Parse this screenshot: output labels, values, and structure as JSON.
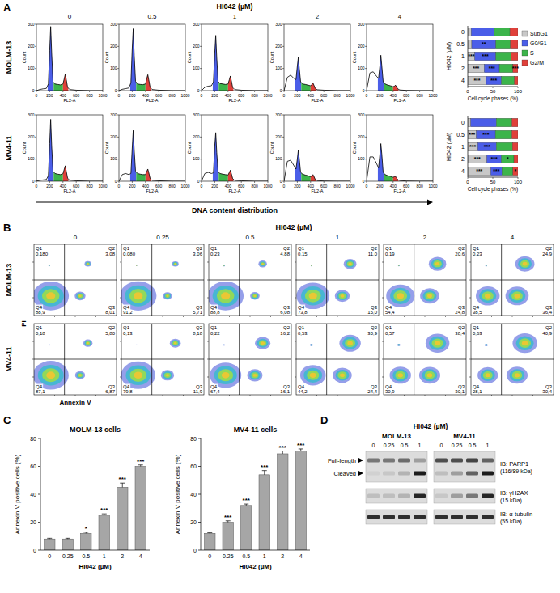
{
  "figure": {
    "panel_a": {
      "label": "A",
      "title": "HI042 (µM)",
      "footer": "DNA content distribution"
    },
    "panel_b": {
      "label": "B",
      "title": "HI042 (µM)",
      "doses": [
        "0",
        "0.25",
        "0.5",
        "1",
        "2",
        "4"
      ],
      "xlabel": "Annexin V",
      "ylabel": "PI",
      "quadrant_names": [
        "Q1",
        "Q2",
        "Q3",
        "Q4"
      ]
    },
    "panel_c": {
      "label": "C"
    },
    "panel_d": {
      "label": "D",
      "title": "HI042 (µM)",
      "cell_lines": [
        "MOLM-13",
        "MV4-11"
      ],
      "lanes": [
        "0",
        "0.25",
        "0.5",
        "1"
      ],
      "band_labels": [
        "Full-length",
        "Cleaved"
      ],
      "rows": [
        {
          "label": "IB: PARP1",
          "size": "(116/89 kDa)",
          "bands": [
            {
              "intensity": [
                [
                  0.5,
                  0.5,
                  0.55,
                  0.3
                ],
                [
                  0.7,
                  0.7,
                  0.75,
                  0.6
                ]
              ]
            },
            {
              "intensity": [
                [
                  0.05,
                  0.1,
                  0.2,
                  0.95
                ],
                [
                  0.15,
                  0.3,
                  0.6,
                  0.95
                ]
              ]
            }
          ]
        },
        {
          "label": "IB: γH2AX",
          "size": "(15 kDa)",
          "bands": [
            {
              "intensity": [
                [
                  0.15,
                  0.15,
                  0.2,
                  0.9
                ],
                [
                  0.1,
                  0.3,
                  0.5,
                  0.9
                ]
              ]
            }
          ]
        },
        {
          "label": "IB: α-tubulin",
          "size": "(55 kDa)",
          "bands": [
            {
              "intensity": [
                [
                  0.85,
                  0.85,
                  0.85,
                  0.85
                ],
                [
                  0.85,
                  0.85,
                  0.85,
                  0.85
                ]
              ]
            }
          ]
        }
      ]
    }
  },
  "chart_data": [
    {
      "type": "area",
      "title": "MOLM-13",
      "xlabel": "FL2-A",
      "ylabel": "Count",
      "x": [
        0,
        50,
        100,
        150,
        180,
        200,
        215,
        230,
        250,
        280,
        320,
        360,
        400,
        420,
        435,
        450,
        470,
        500,
        600,
        800,
        1000
      ],
      "xlim": [
        0,
        1000
      ],
      "xticks": [
        0,
        200,
        400,
        600,
        800,
        1000
      ],
      "ylim": [
        0,
        300
      ],
      "yticks": [
        0,
        100,
        200,
        300
      ],
      "regions": [
        {
          "color": "#4b5ee8",
          "x": [
            170,
            260
          ]
        },
        {
          "color": "#3cb44b",
          "x": [
            260,
            400
          ]
        },
        {
          "color": "#e0403a",
          "x": [
            400,
            480
          ]
        }
      ],
      "series": [
        {
          "name": "0",
          "values": [
            0,
            5,
            8,
            10,
            30,
            180,
            290,
            170,
            40,
            30,
            28,
            26,
            30,
            55,
            75,
            50,
            15,
            5,
            2,
            0,
            0
          ]
        },
        {
          "name": "0.5",
          "values": [
            0,
            6,
            9,
            12,
            35,
            190,
            280,
            160,
            42,
            30,
            28,
            27,
            30,
            55,
            72,
            48,
            15,
            5,
            2,
            0,
            0
          ]
        },
        {
          "name": "1",
          "values": [
            0,
            15,
            20,
            22,
            40,
            170,
            250,
            150,
            42,
            32,
            30,
            28,
            30,
            50,
            66,
            45,
            14,
            5,
            2,
            0,
            0
          ]
        },
        {
          "name": "2",
          "values": [
            0,
            60,
            70,
            55,
            50,
            110,
            150,
            100,
            40,
            30,
            28,
            25,
            22,
            28,
            35,
            25,
            10,
            4,
            2,
            0,
            0
          ]
        },
        {
          "name": "4",
          "values": [
            0,
            80,
            85,
            65,
            55,
            110,
            160,
            110,
            40,
            30,
            25,
            22,
            18,
            20,
            25,
            18,
            8,
            3,
            1,
            0,
            0
          ]
        }
      ]
    },
    {
      "type": "area",
      "title": "MV4-11",
      "xlabel": "FL2-A",
      "ylabel": "Count",
      "x": [
        0,
        50,
        100,
        150,
        180,
        200,
        215,
        230,
        250,
        280,
        320,
        360,
        400,
        420,
        435,
        450,
        470,
        500,
        600,
        800,
        1000
      ],
      "xlim": [
        0,
        1000
      ],
      "xticks": [
        0,
        200,
        400,
        600,
        800,
        1000
      ],
      "ylim": [
        0,
        300
      ],
      "yticks": [
        0,
        100,
        200,
        300
      ],
      "regions": [
        {
          "color": "#4b5ee8",
          "x": [
            170,
            260
          ]
        },
        {
          "color": "#3cb44b",
          "x": [
            260,
            400
          ]
        },
        {
          "color": "#e0403a",
          "x": [
            400,
            480
          ]
        }
      ],
      "series": [
        {
          "values": [
            0,
            4,
            6,
            8,
            25,
            170,
            280,
            160,
            45,
            35,
            32,
            30,
            34,
            55,
            70,
            45,
            14,
            5,
            2,
            0,
            0
          ]
        },
        {
          "values": [
            0,
            30,
            35,
            30,
            35,
            150,
            230,
            140,
            45,
            35,
            32,
            30,
            30,
            45,
            55,
            38,
            12,
            4,
            2,
            0,
            0
          ]
        },
        {
          "values": [
            0,
            35,
            40,
            35,
            38,
            160,
            220,
            130,
            42,
            35,
            32,
            30,
            28,
            40,
            50,
            35,
            12,
            4,
            2,
            0,
            0
          ]
        },
        {
          "values": [
            0,
            90,
            95,
            70,
            55,
            100,
            140,
            100,
            40,
            32,
            28,
            25,
            20,
            25,
            30,
            22,
            8,
            3,
            1,
            0,
            0
          ]
        },
        {
          "values": [
            0,
            110,
            110,
            80,
            60,
            120,
            170,
            120,
            40,
            30,
            25,
            22,
            18,
            20,
            22,
            16,
            7,
            3,
            1,
            0,
            0
          ]
        }
      ]
    },
    {
      "type": "bar",
      "orientation": "horizontal",
      "stacked": true,
      "legend": "right",
      "ylabel": "HI042 (µM)",
      "xlabel": "Cell cycle phases (%)",
      "categories": [
        "0",
        "0.5",
        "1",
        "2",
        "4"
      ],
      "xlim": [
        0,
        100
      ],
      "xticks": [
        0,
        50,
        100
      ],
      "series": [
        {
          "name": "SubG1",
          "color": "#c8c8c8",
          "values": [
            7,
            8,
            14,
            33,
            37
          ],
          "significance": [
            null,
            null,
            "***",
            "***",
            "***"
          ]
        },
        {
          "name": "G0/G1",
          "color": "#4b5ee8",
          "values": [
            46,
            48,
            42,
            30,
            30
          ],
          "significance": [
            null,
            "**",
            "***",
            "***",
            "***"
          ]
        },
        {
          "name": "S",
          "color": "#3cb44b",
          "values": [
            31,
            29,
            30,
            27,
            26
          ],
          "significance": [
            null,
            null,
            null,
            null,
            null
          ]
        },
        {
          "name": "G2/M",
          "color": "#e0403a",
          "values": [
            16,
            15,
            14,
            10,
            7
          ],
          "significance": [
            null,
            null,
            null,
            "***",
            null
          ]
        }
      ]
    },
    {
      "type": "bar",
      "orientation": "horizontal",
      "stacked": true,
      "ylabel": "HI042 (µM)",
      "xlabel": "Cell cycle phases (%)",
      "categories": [
        "0",
        "0.5",
        "1",
        "2",
        "4"
      ],
      "xlim": [
        0,
        100
      ],
      "xticks": [
        0,
        50,
        100
      ],
      "series": [
        {
          "color": "#c8c8c8",
          "values": [
            6,
            17,
            20,
            38,
            46
          ],
          "significance": [
            null,
            "***",
            "***",
            "***",
            "***"
          ]
        },
        {
          "color": "#4b5ee8",
          "values": [
            51,
            38,
            37,
            29,
            22
          ],
          "significance": [
            null,
            "***",
            "***",
            "***",
            "***"
          ]
        },
        {
          "color": "#3cb44b",
          "values": [
            31,
            33,
            32,
            25,
            22
          ],
          "significance": [
            null,
            null,
            null,
            "*",
            null
          ]
        },
        {
          "color": "#e0403a",
          "values": [
            12,
            12,
            11,
            8,
            10
          ],
          "significance": [
            null,
            null,
            null,
            null,
            "*"
          ]
        }
      ]
    },
    {
      "type": "scatter",
      "title": "MOLM-13",
      "log": true,
      "tick_labels": false,
      "xlim": [
        1,
        10000
      ],
      "ylim": [
        1,
        10000
      ],
      "xticks": [
        10,
        100,
        1000
      ],
      "yticks": [
        10,
        100,
        1000
      ],
      "gate": [
        30,
        100
      ],
      "plots": [
        {
          "values": [
            0.18,
            3.08,
            8.01,
            88.9
          ],
          "value_labels": [
            "0,180",
            "3,08",
            "8,01",
            "88,9"
          ]
        },
        {
          "values": [
            0.08,
            3.06,
            5.71,
            91.2
          ],
          "value_labels": [
            "0,080",
            "3,06",
            "5,71",
            "91,2"
          ]
        },
        {
          "values": [
            0.23,
            4.88,
            6.08,
            88.8
          ],
          "value_labels": [
            "0,23",
            "4,88",
            "6,08",
            "88,8"
          ]
        },
        {
          "values": [
            0.15,
            11.0,
            15.0,
            73.8
          ],
          "value_labels": [
            "0,15",
            "11,0",
            "15,0",
            "73,8"
          ]
        },
        {
          "values": [
            0.19,
            20.6,
            24.8,
            54.4
          ],
          "value_labels": [
            "0,19",
            "20,6",
            "24,8",
            "54,4"
          ]
        },
        {
          "values": [
            0.23,
            24.9,
            36.4,
            38.5
          ],
          "value_labels": [
            "0,23",
            "24,9",
            "36,4",
            "38,5"
          ]
        }
      ]
    },
    {
      "type": "scatter",
      "title": "MV4-11",
      "log": true,
      "tick_labels": false,
      "xlim": [
        1,
        10000
      ],
      "ylim": [
        1,
        10000
      ],
      "xticks": [
        10,
        100,
        1000
      ],
      "yticks": [
        10,
        100,
        1000
      ],
      "gate": [
        30,
        100
      ],
      "plots": [
        {
          "values": [
            0.18,
            5.8,
            6.87,
            87.1
          ],
          "value_labels": [
            "0,18",
            "5,80",
            "6,87",
            "87,1"
          ]
        },
        {
          "values": [
            0.13,
            8.18,
            11.9,
            79.8
          ],
          "value_labels": [
            "0,13",
            "8,18",
            "11,9",
            "79,8"
          ]
        },
        {
          "values": [
            0.22,
            16.2,
            16.1,
            67.4
          ],
          "value_labels": [
            "0,22",
            "16,2",
            "16,1",
            "67,4"
          ]
        },
        {
          "values": [
            0.53,
            30.9,
            24.4,
            44.2
          ],
          "value_labels": [
            "0,53",
            "30,9",
            "24,4",
            "44,2"
          ]
        },
        {
          "values": [
            0.57,
            38.4,
            30.1,
            30.9
          ],
          "value_labels": [
            "0,57",
            "38,4",
            "30,1",
            "30,9"
          ]
        },
        {
          "values": [
            0.63,
            40.9,
            30.4,
            28.1
          ],
          "value_labels": [
            "0,63",
            "40,9",
            "30,4",
            "28,1"
          ]
        }
      ]
    },
    {
      "type": "bar",
      "title": "MOLM-13 cells",
      "xlabel": "HI042 (µM)",
      "ylabel": "Annexin V positive cells (%)",
      "color": "#a6a6a6",
      "categories": [
        "0",
        "0.25",
        "0.5",
        "1",
        "2",
        "4"
      ],
      "values": [
        8,
        8,
        12,
        25,
        45,
        60
      ],
      "errors": [
        0.5,
        0.5,
        0.8,
        1,
        3,
        1
      ],
      "significance": [
        null,
        null,
        "*",
        "***",
        "***",
        "***"
      ],
      "ylim": [
        0,
        80
      ],
      "yticks": [
        0,
        20,
        40,
        60,
        80
      ]
    },
    {
      "type": "bar",
      "title": "MV4-11 cells",
      "xlabel": "HI042 (µM)",
      "ylabel": "Annexin V positive cells (%)",
      "color": "#a6a6a6",
      "categories": [
        "0",
        "0.25",
        "0.5",
        "1",
        "2",
        "4"
      ],
      "values": [
        12,
        20,
        32,
        54,
        69,
        71
      ],
      "errors": [
        0.5,
        1,
        1,
        3,
        2,
        1.5
      ],
      "significance": [
        null,
        "***",
        "***",
        "***",
        "***",
        "***"
      ],
      "ylim": [
        0,
        80
      ],
      "yticks": [
        0,
        20,
        40,
        60,
        80
      ]
    }
  ]
}
